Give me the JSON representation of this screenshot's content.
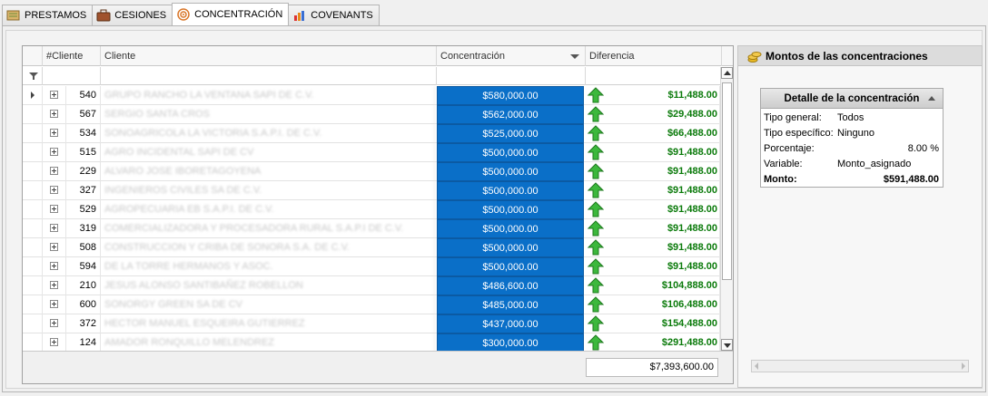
{
  "tabs": [
    {
      "label": "PRESTAMOS",
      "icon": "ledger-icon",
      "active": false
    },
    {
      "label": "CESIONES",
      "icon": "briefcase-icon",
      "active": false
    },
    {
      "label": "CONCENTRACIÓN",
      "icon": "target-icon",
      "active": true
    },
    {
      "label": "COVENANTS",
      "icon": "bar-chart-icon",
      "active": false
    }
  ],
  "grid": {
    "columns": {
      "id": "#Cliente",
      "name": "Cliente",
      "concentration": "Concentración",
      "difference": "Diferencia"
    },
    "rows": [
      {
        "id": "540",
        "name": "GRUPO RANCHO LA VENTANA SAPI DE C.V.",
        "concentration": "$580,000.00",
        "difference": "$11,488.00"
      },
      {
        "id": "567",
        "name": "SERGIO SANTA CROS",
        "concentration": "$562,000.00",
        "difference": "$29,488.00"
      },
      {
        "id": "534",
        "name": "SONOAGRICOLA LA VICTORIA S.A.P.I. DE C.V.",
        "concentration": "$525,000.00",
        "difference": "$66,488.00"
      },
      {
        "id": "515",
        "name": "AGRO INCIDENTAL SAPI DE CV",
        "concentration": "$500,000.00",
        "difference": "$91,488.00"
      },
      {
        "id": "229",
        "name": "ALVARO JOSE IBORETAGOYENA",
        "concentration": "$500,000.00",
        "difference": "$91,488.00"
      },
      {
        "id": "327",
        "name": "INGENIEROS CIVILES SA DE C.V.",
        "concentration": "$500,000.00",
        "difference": "$91,488.00"
      },
      {
        "id": "529",
        "name": "AGROPECUARIA EB S.A.P.I. DE C.V.",
        "concentration": "$500,000.00",
        "difference": "$91,488.00"
      },
      {
        "id": "319",
        "name": "COMERCIALIZADORA Y PROCESADORA RURAL S.A.P.I DE C.V.",
        "concentration": "$500,000.00",
        "difference": "$91,488.00"
      },
      {
        "id": "508",
        "name": "CONSTRUCCION Y CRIBA DE SONORA S.A. DE C.V.",
        "concentration": "$500,000.00",
        "difference": "$91,488.00"
      },
      {
        "id": "594",
        "name": "DE LA TORRE HERMANOS Y ASOC.",
        "concentration": "$500,000.00",
        "difference": "$91,488.00"
      },
      {
        "id": "210",
        "name": "JESUS ALONSO SANTIBAÑEZ ROBELLON",
        "concentration": "$486,600.00",
        "difference": "$104,888.00"
      },
      {
        "id": "600",
        "name": "SONORGY GREEN SA DE CV",
        "concentration": "$485,000.00",
        "difference": "$106,488.00"
      },
      {
        "id": "372",
        "name": "HECTOR MANUEL ESQUEIRA GUTIERREZ",
        "concentration": "$437,000.00",
        "difference": "$154,488.00"
      },
      {
        "id": "124",
        "name": "AMADOR RONQUILLO MELENDREZ",
        "concentration": "$300,000.00",
        "difference": "$291,488.00"
      }
    ],
    "total": "$7,393,600.00"
  },
  "panel": {
    "title": "Montos de las concentraciones",
    "detail_title": "Detalle de la concentración",
    "tipo_general_label": "Tipo general:",
    "tipo_general_value": "Todos",
    "tipo_especifico_label": "Tipo específico:",
    "tipo_especifico_value": "Ninguno",
    "porcentaje_label": "Porcentaje:",
    "porcentaje_value": "8.00 %",
    "variable_label": "Variable:",
    "variable_value": "Monto_asignado",
    "monto_label": "Monto:",
    "monto_value": "$591,488.00"
  },
  "colors": {
    "concentration_bg": "#0a6fc8",
    "difference_text": "#0a7a0a",
    "up_arrow": "#3cb83c"
  }
}
